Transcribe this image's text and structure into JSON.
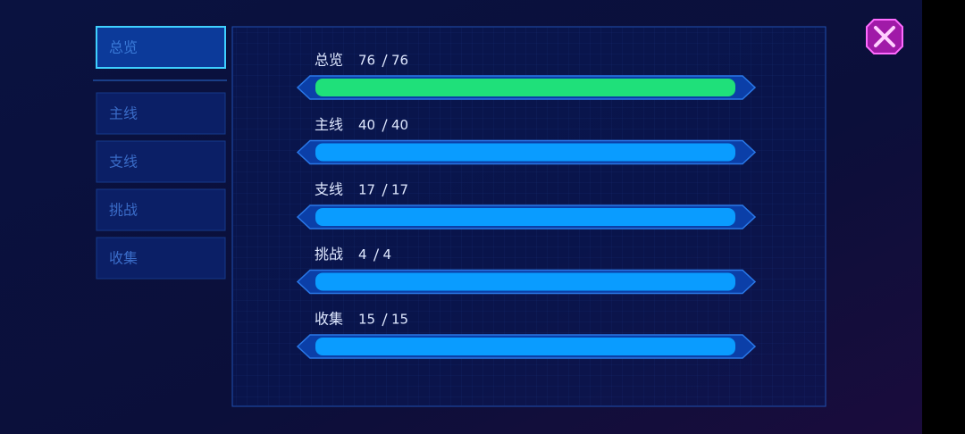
{
  "tabs": [
    "总览",
    "主线",
    "支线",
    "挑战",
    "收集"
  ],
  "active_tab": 0,
  "progress": [
    {
      "label": "总览",
      "value": 76,
      "total": 76,
      "color": "#1fe07a"
    },
    {
      "label": "主线",
      "value": 40,
      "total": 40,
      "color": "#0a9cff"
    },
    {
      "label": "支线",
      "value": 17,
      "total": 17,
      "color": "#0a9cff"
    },
    {
      "label": "挑战",
      "value": 4,
      "total": 4,
      "color": "#0a9cff"
    },
    {
      "label": "收集",
      "value": 15,
      "total": 15,
      "color": "#0a9cff"
    }
  ]
}
